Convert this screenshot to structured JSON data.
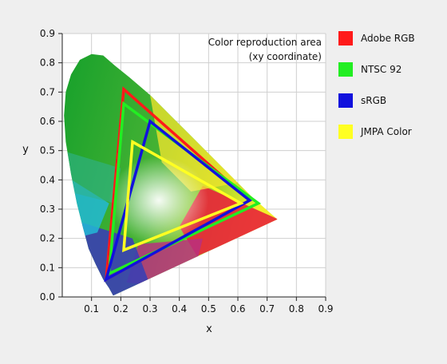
{
  "chart_data": {
    "type": "scatter",
    "title": "",
    "annotation": [
      "Color reproduction area",
      "(xy coordinate)"
    ],
    "xlabel": "x",
    "ylabel": "y",
    "xlim": [
      0,
      0.9
    ],
    "ylim": [
      0,
      0.9
    ],
    "xticks": [
      "0.1",
      "0.2",
      "0.3",
      "0.4",
      "0.5",
      "0.6",
      "0.7",
      "0.8",
      "0.9"
    ],
    "yticks": [
      "0.0",
      "0.1",
      "0.2",
      "0.3",
      "0.4",
      "0.5",
      "0.6",
      "0.7",
      "0.8",
      "0.9"
    ],
    "grid": true,
    "legend_position": "right",
    "series": [
      {
        "name": "Adobe RGB",
        "color": "#ff1a1a",
        "points": [
          [
            0.21,
            0.71
          ],
          [
            0.64,
            0.33
          ],
          [
            0.15,
            0.06
          ]
        ]
      },
      {
        "name": "NTSC 92",
        "color": "#22ee22",
        "points": [
          [
            0.21,
            0.66
          ],
          [
            0.67,
            0.32
          ],
          [
            0.16,
            0.08
          ]
        ]
      },
      {
        "name": "sRGB",
        "color": "#1111dd",
        "points": [
          [
            0.3,
            0.6
          ],
          [
            0.64,
            0.33
          ],
          [
            0.15,
            0.06
          ]
        ]
      },
      {
        "name": "JMPA Color",
        "color": "#ffff22",
        "points": [
          [
            0.24,
            0.53
          ],
          [
            0.61,
            0.32
          ],
          [
            0.21,
            0.16
          ]
        ]
      }
    ]
  }
}
